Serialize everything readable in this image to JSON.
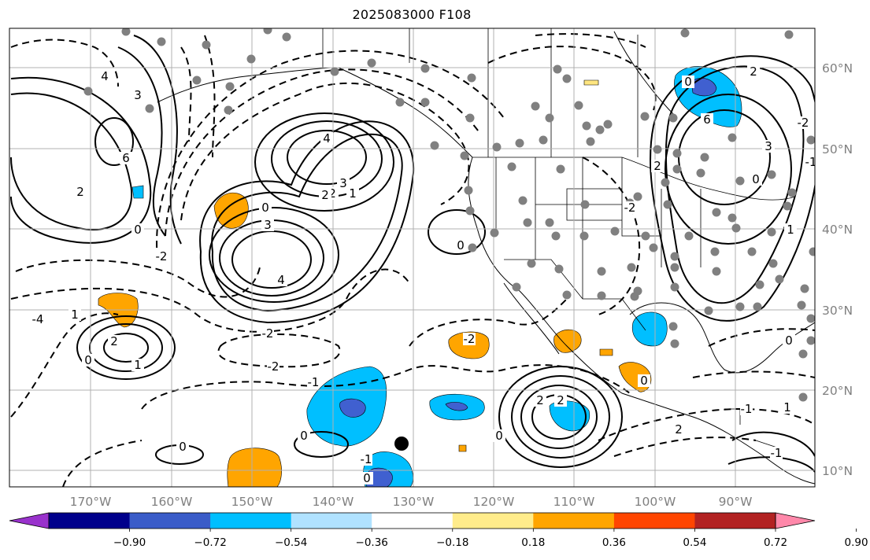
{
  "title": "2025083000 F108",
  "map": {
    "lon_labels": [
      "170°W",
      "160°W",
      "150°W",
      "140°W",
      "130°W",
      "120°W",
      "110°W",
      "100°W",
      "90°W"
    ],
    "lat_labels": [
      "60°N",
      "50°N",
      "40°N",
      "30°N",
      "20°N",
      "10°N"
    ],
    "contour_labels": [
      "4",
      "3",
      "6",
      "2",
      "0",
      "-2",
      "-4",
      "4",
      "3",
      "2",
      "2",
      "1",
      "0",
      "3",
      "4",
      "0",
      "-2",
      "1",
      "2",
      "1",
      "0",
      "-2",
      "-1",
      "0",
      "0",
      "0",
      "-1",
      "2",
      "2",
      "0",
      "-2",
      "0",
      "-1",
      "2",
      "6",
      "0",
      "3",
      "1",
      "0",
      "-2",
      "0",
      "-1",
      "2",
      "-2",
      "1",
      "-1",
      "2"
    ],
    "colors": {
      "grid": "#b0b0b0",
      "station": "#808080",
      "orange_fill": "#ffa500",
      "light_orange": "#ffe680",
      "sky_blue": "#00bfff",
      "royal_blue": "#4060d0",
      "contour": "#000000"
    }
  },
  "colorbar": {
    "colors": [
      "#9932cc",
      "#00008b",
      "#3a5cc8",
      "#00bfff",
      "#b0e2ff",
      "#ffffff",
      "#ffec8b",
      "#ffa500",
      "#ff4500",
      "#b22222",
      "#ff88aa"
    ],
    "tick_labels": [
      "−0.90",
      "−0.72",
      "−0.54",
      "−0.36",
      "−0.18",
      "0.18",
      "0.36",
      "0.54",
      "0.72",
      "0.90"
    ]
  }
}
